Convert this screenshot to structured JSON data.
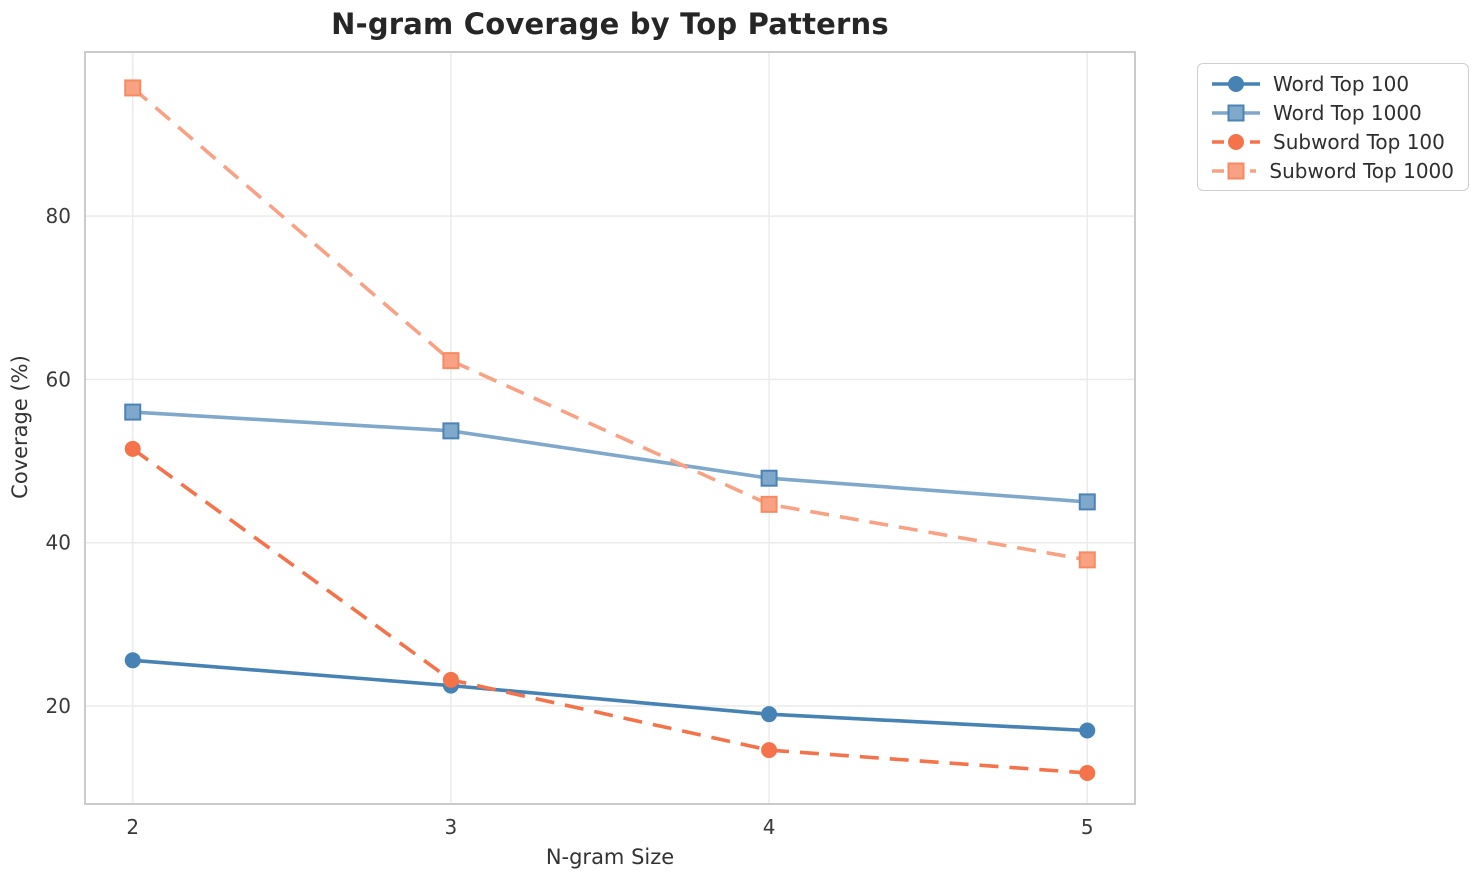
{
  "chart_data": {
    "type": "line",
    "title": "N-gram Coverage by Top Patterns",
    "xlabel": "N-gram Size",
    "ylabel": "Coverage (%)",
    "x": [
      2,
      3,
      4,
      5
    ],
    "xticks": [
      "2",
      "3",
      "4",
      "5"
    ],
    "yticks": [
      "20",
      "40",
      "60",
      "80"
    ],
    "xlim": [
      1.85,
      5.15
    ],
    "ylim": [
      8,
      100.1
    ],
    "grid": true,
    "legend_position": "outside-upper-right",
    "series": [
      {
        "name": "Word Top 100",
        "values": [
          25.6,
          22.5,
          19.0,
          17.0
        ],
        "color": "#4682B4",
        "edge_color": "#4682B4",
        "line_style": "solid",
        "marker": "circle"
      },
      {
        "name": "Word Top 1000",
        "values": [
          56.0,
          53.7,
          47.9,
          45.0
        ],
        "color": "#7FA8CB",
        "edge_color": "#4C83B6",
        "line_style": "solid",
        "marker": "square"
      },
      {
        "name": "Subword Top 100",
        "values": [
          51.5,
          23.2,
          14.6,
          11.8
        ],
        "color": "#F5734A",
        "edge_color": "#F5734A",
        "line_style": "dashed",
        "marker": "circle"
      },
      {
        "name": "Subword Top 1000",
        "values": [
          95.7,
          62.3,
          44.7,
          37.9
        ],
        "color": "#F9A183",
        "edge_color": "#F68A61",
        "line_style": "dashed",
        "marker": "square"
      }
    ],
    "style": {
      "grid_color": "#EBEBEB",
      "frame_color": "#CBCBCB",
      "tick_color": "#3A3A3A",
      "title_color": "#262626"
    }
  }
}
